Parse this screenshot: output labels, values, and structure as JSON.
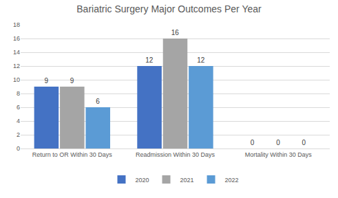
{
  "chart_data": {
    "type": "bar",
    "title": "Bariatric Surgery Major Outcomes Per Year",
    "categories": [
      "Return to OR Within 30 Days",
      "Readmission Within 30 Days",
      "Mortality Within 30 Days"
    ],
    "series": [
      {
        "name": "2020",
        "color": "#4472c4",
        "values": [
          9,
          12,
          0
        ]
      },
      {
        "name": "2021",
        "color": "#a5a5a5",
        "values": [
          9,
          16,
          0
        ]
      },
      {
        "name": "2022",
        "color": "#5b9bd5",
        "values": [
          6,
          12,
          0
        ]
      }
    ],
    "ylim": [
      0,
      18
    ],
    "yticks": [
      0,
      2,
      4,
      6,
      8,
      10,
      12,
      14,
      16,
      18
    ],
    "grid": true,
    "legend": "bottom",
    "data_labels": true
  }
}
